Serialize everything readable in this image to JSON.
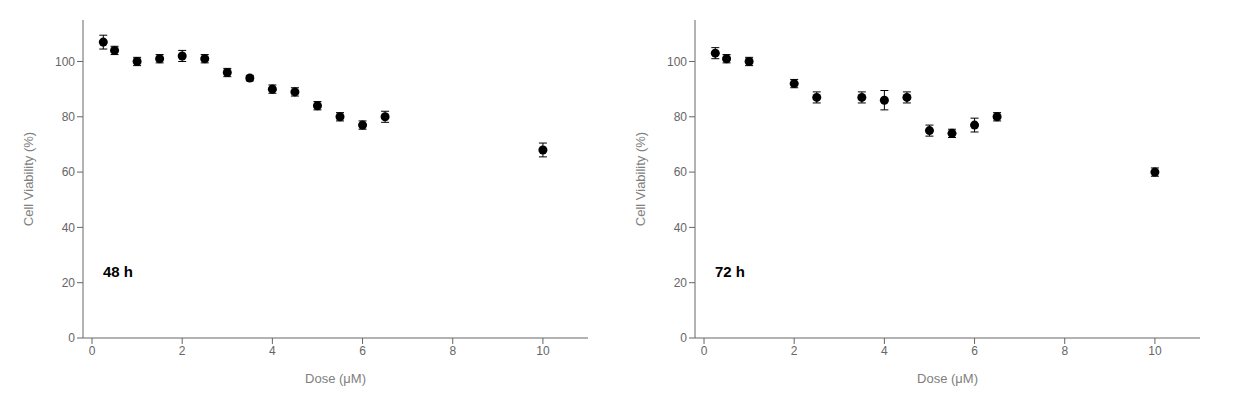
{
  "chart_data": [
    {
      "type": "scatter",
      "annotation": "48 h",
      "x": [
        0.25,
        0.5,
        1.0,
        1.5,
        2.0,
        2.5,
        3.0,
        3.5,
        4.0,
        4.5,
        5.0,
        5.5,
        6.0,
        6.5,
        10.0
      ],
      "values": [
        107,
        104,
        100,
        101,
        102,
        101,
        96,
        94,
        90,
        89,
        84,
        80,
        77,
        80,
        68
      ],
      "error": [
        2.5,
        1.5,
        1.5,
        1.5,
        2.0,
        1.5,
        1.5,
        1.0,
        1.5,
        1.5,
        1.5,
        1.5,
        1.5,
        2.0,
        2.5
      ],
      "xlim": [
        -0.2,
        11
      ],
      "ylim": [
        0,
        115
      ],
      "xticks": [
        0,
        2,
        4,
        6,
        8,
        10
      ],
      "yticks": [
        0,
        20,
        40,
        60,
        80,
        100
      ],
      "xlabel": "Dose (μM)",
      "ylabel": "Cell Viability (%)",
      "color": "#000000",
      "marker": "circle",
      "grid": false
    },
    {
      "type": "scatter",
      "annotation": "72 h",
      "x": [
        0.25,
        0.5,
        1.0,
        2.0,
        2.5,
        3.5,
        4.0,
        4.5,
        5.0,
        5.5,
        6.0,
        6.5,
        10.0
      ],
      "values": [
        103,
        101,
        100,
        92,
        87,
        87,
        86,
        87,
        75,
        74,
        77,
        80,
        60
      ],
      "error": [
        2.0,
        1.5,
        1.5,
        1.5,
        2.0,
        2.0,
        3.5,
        2.0,
        2.0,
        1.5,
        2.5,
        1.5,
        1.5
      ],
      "xlim": [
        -0.2,
        11
      ],
      "ylim": [
        0,
        115
      ],
      "xticks": [
        0,
        2,
        4,
        6,
        8,
        10
      ],
      "yticks": [
        0,
        20,
        40,
        60,
        80,
        100
      ],
      "xlabel": "Dose (μM)",
      "ylabel": "Cell Viability (%)",
      "color": "#000000",
      "marker": "circle",
      "grid": false
    }
  ]
}
